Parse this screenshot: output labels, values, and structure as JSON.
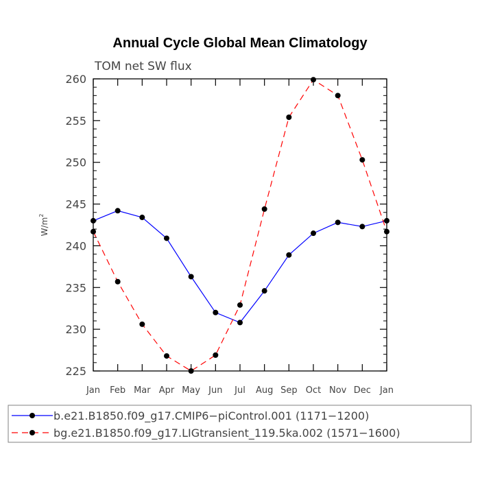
{
  "chart_data": {
    "type": "line",
    "title": "Annual Cycle Global Mean Climatology",
    "subtitle": "TOM net SW flux",
    "ylabel": "W/m",
    "ylabel_sup": "2",
    "xlabel": "",
    "categories": [
      "Jan",
      "Feb",
      "Mar",
      "Apr",
      "May",
      "Jun",
      "Jul",
      "Aug",
      "Sep",
      "Oct",
      "Nov",
      "Dec",
      "Jan"
    ],
    "ylim": [
      225,
      260
    ],
    "yticks": [
      225,
      230,
      235,
      240,
      245,
      250,
      255,
      260
    ],
    "grid": false,
    "legend_position": "bottom",
    "series": [
      {
        "name": "b.e21.B1850.f09_g17.CMIP6−piControl.001 (1171−1200)",
        "color": "#0000ff",
        "dash": "solid",
        "values": [
          243.0,
          244.2,
          243.4,
          240.9,
          236.3,
          232.0,
          230.8,
          234.6,
          238.9,
          241.5,
          242.8,
          242.3,
          243.0
        ]
      },
      {
        "name": "bg.e21.B1850.f09_g17.LIGtransient_119.5ka.002 (1571−1600)",
        "color": "#ff0000",
        "dash": "dashed",
        "values": [
          241.7,
          235.7,
          230.6,
          226.8,
          225.0,
          226.9,
          232.9,
          244.4,
          255.4,
          259.9,
          258.0,
          250.3,
          241.7
        ]
      }
    ]
  }
}
